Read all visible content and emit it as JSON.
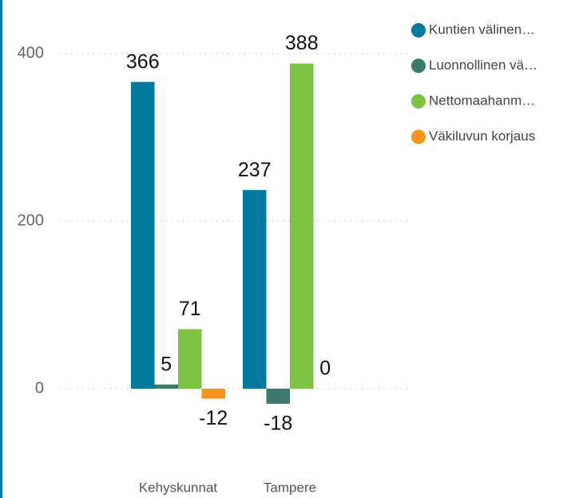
{
  "chart_data": {
    "type": "bar",
    "categories": [
      "Kehyskunnat",
      "Tampere"
    ],
    "series": [
      {
        "name": "Kuntien välinen…",
        "color": "#00799c",
        "values": [
          366,
          237
        ]
      },
      {
        "name": "Luonnollinen vä…",
        "color": "#3a7a6a",
        "values": [
          5,
          -18
        ]
      },
      {
        "name": "Nettomaahanm…",
        "color": "#7dc242",
        "values": [
          71,
          388
        ]
      },
      {
        "name": "Väkiluvun korjaus",
        "color": "#f7941d",
        "values": [
          -12,
          0
        ]
      }
    ],
    "ylim": [
      -30,
      420
    ],
    "yticks": [
      0,
      200,
      400
    ],
    "grid": true,
    "legend": "right"
  }
}
